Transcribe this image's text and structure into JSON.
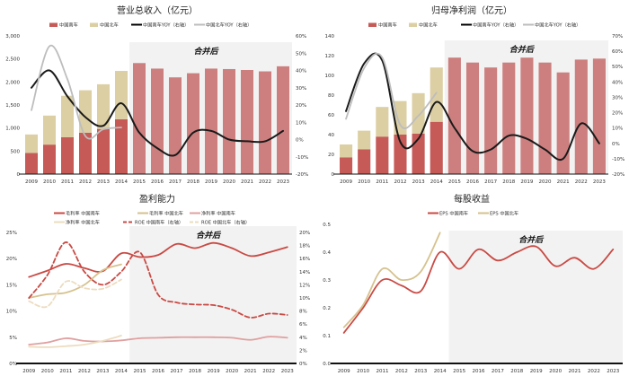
{
  "chart_data": [
    {
      "type": "bar",
      "title": "营业总收入（亿元）",
      "categories": [
        "2009",
        "2010",
        "2011",
        "2012",
        "2013",
        "2014",
        "2015",
        "2016",
        "2017",
        "2018",
        "2019",
        "2020",
        "2021",
        "2022",
        "2023"
      ],
      "left_axis": {
        "min": 0,
        "max": 3000,
        "step": 500,
        "format": "comma"
      },
      "right_axis": {
        "min": -20,
        "max": 60,
        "step": 10,
        "format": "percent"
      },
      "annotation": "合并后",
      "shaded_from": "2015",
      "bars_stacked": true,
      "bar_series": [
        {
          "name": "中国南车",
          "values": [
            460,
            640,
            800,
            900,
            980,
            1190,
            2410,
            2290,
            2100,
            2190,
            2290,
            2280,
            2260,
            2230,
            2340
          ],
          "color": "#c55a57",
          "color_after_merger": "#cc7f7e"
        },
        {
          "name": "中国北车",
          "values": [
            400,
            630,
            900,
            920,
            970,
            1050,
            null,
            null,
            null,
            null,
            null,
            null,
            null,
            null,
            null
          ],
          "color": "#dccfa3"
        }
      ],
      "line_series": [
        {
          "name": "中国南车YOY（右轴）",
          "values": [
            30,
            40,
            25,
            13,
            8,
            21,
            4,
            -5,
            -9,
            4,
            5,
            0,
            -1,
            -1,
            5
          ],
          "color": "#000000",
          "axis": "right"
        },
        {
          "name": "中国北车YOY（右轴）",
          "values": [
            17,
            54,
            35,
            2,
            6,
            7,
            null,
            null,
            null,
            null,
            null,
            null,
            null,
            null,
            null
          ],
          "color": "#bdbdbd",
          "axis": "right"
        }
      ]
    },
    {
      "type": "bar",
      "title": "归母净利润（亿元）",
      "categories": [
        "2009",
        "2010",
        "2011",
        "2012",
        "2013",
        "2014",
        "2015",
        "2016",
        "2017",
        "2018",
        "2019",
        "2020",
        "2021",
        "2022",
        "2023"
      ],
      "left_axis": {
        "min": 0,
        "max": 140,
        "step": 20,
        "format": "plain"
      },
      "right_axis": {
        "min": -20,
        "max": 70,
        "step": 10,
        "format": "percent"
      },
      "annotation": "合并后",
      "shaded_from": "2015",
      "bars_stacked": true,
      "bar_series": [
        {
          "name": "中国南车",
          "values": [
            17,
            25,
            38,
            40,
            41,
            53,
            118,
            113,
            108,
            113,
            118,
            113,
            103,
            116,
            117
          ],
          "color": "#c55a57",
          "color_after_merger": "#cc7f7e"
        },
        {
          "name": "中国北车",
          "values": [
            13,
            19,
            30,
            34,
            41,
            55,
            null,
            null,
            null,
            null,
            null,
            null,
            null,
            null,
            null
          ],
          "color": "#dccfa3"
        }
      ],
      "line_series": [
        {
          "name": "中国南车YOY（右轴）",
          "values": [
            21,
            52,
            54,
            1,
            3,
            27,
            10,
            -5,
            -4,
            5,
            3,
            -4,
            -10,
            13,
            0
          ],
          "color": "#000000",
          "axis": "right"
        },
        {
          "name": "中国北车YOY（右轴）",
          "values": [
            16,
            49,
            56,
            12,
            18,
            33,
            null,
            null,
            null,
            null,
            null,
            null,
            null,
            null,
            null
          ],
          "color": "#bdbdbd",
          "axis": "right"
        }
      ]
    },
    {
      "type": "line",
      "title": "盈利能力",
      "categories": [
        "2009",
        "2010",
        "2011",
        "2012",
        "2013",
        "2014",
        "2015",
        "2016",
        "2017",
        "2018",
        "2019",
        "2020",
        "2021",
        "2022",
        "2023"
      ],
      "left_axis": {
        "min": 0,
        "max": 25,
        "step": 5,
        "format": "percent"
      },
      "right_axis": {
        "min": 0,
        "max": 20,
        "step": 2,
        "format": "percent"
      },
      "annotation": "合并后",
      "shaded_from": "2015",
      "bar_series": [],
      "line_series": [
        {
          "name": "毛利率 中国南车",
          "values": [
            16.5,
            17.7,
            19,
            18.2,
            17.6,
            21,
            20.3,
            20.7,
            22.8,
            22.0,
            23.0,
            22.0,
            20.5,
            21.2,
            22.2
          ],
          "color": "#c94a44",
          "axis": "left"
        },
        {
          "name": "毛利率 中国北车",
          "values": [
            12.5,
            13.2,
            13.5,
            15,
            17.8,
            18.9,
            null,
            null,
            null,
            null,
            null,
            null,
            null,
            null,
            null
          ],
          "color": "#d6c28e",
          "axis": "left"
        },
        {
          "name": "净利率 中国南车",
          "values": [
            3.6,
            4,
            4.8,
            4.3,
            4.2,
            4.4,
            4.8,
            4.9,
            5.0,
            5.0,
            5.0,
            4.9,
            4.5,
            5.1,
            4.9
          ],
          "color": "#e0a0a0",
          "axis": "left"
        },
        {
          "name": "净利率 中国北车",
          "values": [
            3.2,
            3.1,
            3.3,
            3.6,
            4.3,
            5.3,
            null,
            null,
            null,
            null,
            null,
            null,
            null,
            null,
            null
          ],
          "color": "#eddcbf",
          "axis": "left"
        },
        {
          "name": "ROE 中国南车（右轴）",
          "values": [
            10,
            13.5,
            18.5,
            14,
            12,
            14,
            17,
            10.5,
            9.3,
            9,
            8.9,
            8.2,
            7.0,
            7.6,
            7.4
          ],
          "color": "#c94a44",
          "axis": "right",
          "dashed": true
        },
        {
          "name": "ROE 中国北车（右轴）",
          "values": [
            9.5,
            8.7,
            12.5,
            11.5,
            11.4,
            12.8,
            null,
            null,
            null,
            null,
            null,
            null,
            null,
            null,
            null
          ],
          "color": "#eddcbf",
          "axis": "right",
          "dashed": true
        }
      ]
    },
    {
      "type": "line",
      "title": "每股收益",
      "categories": [
        "2009",
        "2010",
        "2011",
        "2012",
        "2013",
        "2014",
        "2015",
        "2016",
        "2017",
        "2018",
        "2019",
        "2020",
        "2021",
        "2022",
        "2023"
      ],
      "left_axis": {
        "min": 0,
        "max": 0.5,
        "step": 0.1,
        "format": "decimal1"
      },
      "annotation": "合并后",
      "shaded_from": "2015",
      "bar_series": [],
      "line_series": [
        {
          "name": "EPS 中国南车",
          "values": [
            0.11,
            0.2,
            0.3,
            0.28,
            0.26,
            0.4,
            0.34,
            0.41,
            0.37,
            0.4,
            0.42,
            0.35,
            0.38,
            0.34,
            0.41
          ],
          "color": "#c94a44",
          "axis": "left"
        },
        {
          "name": "EPS 中国北车",
          "values": [
            0.13,
            0.21,
            0.34,
            0.3,
            0.33,
            0.47,
            null,
            null,
            null,
            null,
            null,
            null,
            null,
            null,
            null
          ],
          "color": "#d6c28e",
          "axis": "left"
        }
      ]
    }
  ]
}
